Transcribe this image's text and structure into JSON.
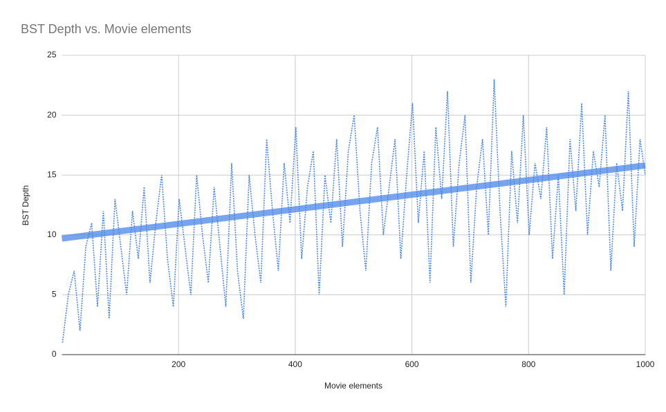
{
  "chart_data": {
    "type": "line",
    "title": "BST Depth vs. Movie elements",
    "x_label": "Movie elements",
    "y_label": "BST Depth",
    "x": [
      1,
      11,
      21,
      31,
      41,
      51,
      61,
      71,
      81,
      91,
      101,
      111,
      121,
      131,
      141,
      151,
      161,
      171,
      181,
      191,
      201,
      211,
      221,
      231,
      241,
      251,
      261,
      271,
      281,
      291,
      301,
      311,
      321,
      331,
      341,
      351,
      361,
      371,
      381,
      391,
      401,
      411,
      421,
      431,
      441,
      451,
      461,
      471,
      481,
      491,
      501,
      511,
      521,
      531,
      541,
      551,
      561,
      571,
      581,
      591,
      601,
      611,
      621,
      631,
      641,
      651,
      661,
      671,
      681,
      691,
      701,
      711,
      721,
      731,
      741,
      751,
      761,
      771,
      781,
      791,
      801,
      811,
      821,
      831,
      841,
      851,
      861,
      871,
      881,
      891,
      901,
      911,
      921,
      931,
      941,
      951,
      961,
      971,
      981,
      991,
      1000
    ],
    "series": [
      {
        "color": "#4a86e8",
        "values": [
          1,
          5,
          7,
          2,
          9,
          11,
          4,
          12,
          3,
          13,
          9,
          5,
          12,
          8,
          14,
          6,
          11,
          15,
          8,
          4,
          13,
          9,
          5,
          15,
          10,
          6,
          14,
          9,
          4,
          16,
          7,
          3,
          15,
          10,
          6,
          18,
          12,
          7,
          16,
          11,
          19,
          8,
          14,
          17,
          5,
          15,
          11,
          18,
          9,
          17,
          20,
          12,
          7,
          16,
          19,
          10,
          14,
          18,
          8,
          15,
          21,
          11,
          17,
          6,
          19,
          13,
          22,
          9,
          16,
          20,
          6,
          14,
          18,
          10,
          23,
          12,
          4,
          17,
          11,
          20,
          10,
          16,
          13,
          19,
          8,
          15,
          5,
          18,
          12,
          21,
          10,
          17,
          14,
          20,
          7,
          16,
          12,
          22,
          9,
          18,
          15
        ]
      }
    ],
    "trendline": {
      "color": "#4a86e8",
      "x": [
        0,
        1000
      ],
      "values": [
        9.7,
        15.8
      ]
    },
    "xlim": [
      0,
      1000
    ],
    "ylim": [
      0,
      25
    ],
    "xticks": [
      200,
      400,
      600,
      800,
      1000
    ],
    "yticks": [
      0,
      5,
      10,
      15,
      20,
      25
    ],
    "grid": true
  }
}
